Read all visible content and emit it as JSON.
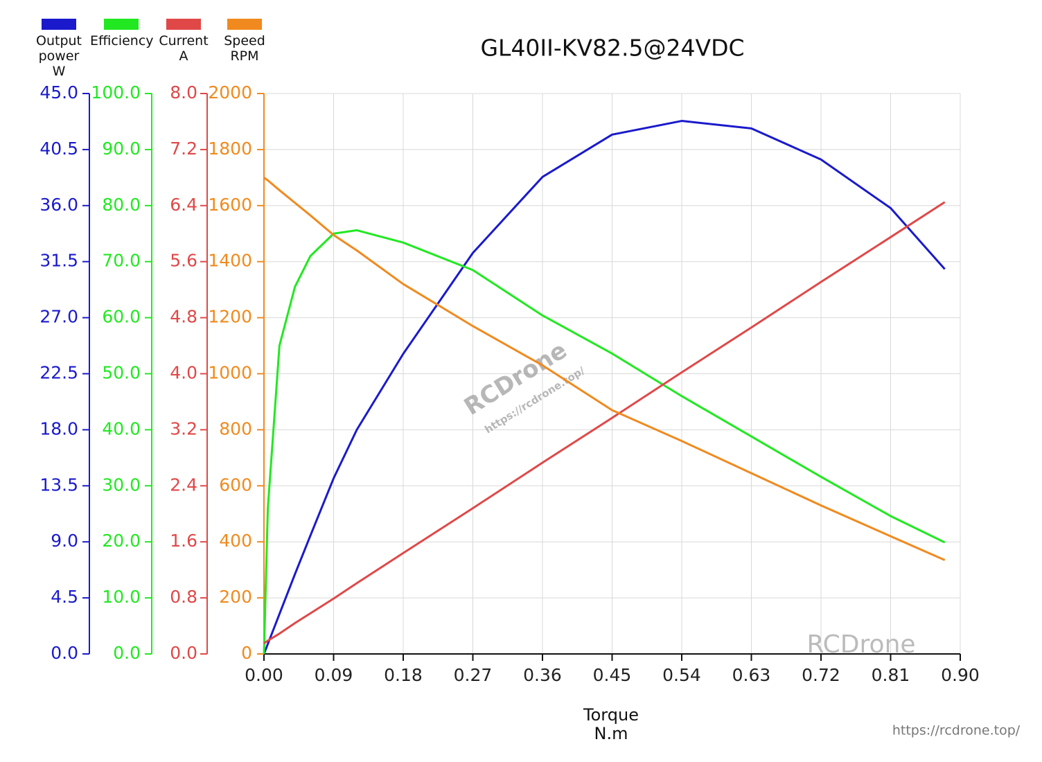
{
  "chart_data": {
    "type": "line",
    "title": "GL40II-KV82.5@24VDC",
    "x_label": "Torque\nN.m",
    "watermarks": [
      "RCDrone",
      "https://rcdrone.top/"
    ],
    "grid": true,
    "x": [
      0,
      0.005,
      0.02,
      0.04,
      0.06,
      0.09,
      0.12,
      0.18,
      0.27,
      0.36,
      0.45,
      0.54,
      0.63,
      0.72,
      0.81,
      0.88
    ],
    "xlim": [
      0,
      0.9
    ],
    "xticks": [
      {
        "value": 0,
        "label": "0.00"
      },
      {
        "value": 0.09,
        "label": "0.09"
      },
      {
        "value": 0.18,
        "label": "0.18"
      },
      {
        "value": 0.27,
        "label": "0.27"
      },
      {
        "value": 0.36,
        "label": "0.36"
      },
      {
        "value": 0.45,
        "label": "0.45"
      },
      {
        "value": 0.54,
        "label": "0.54"
      },
      {
        "value": 0.63,
        "label": "0.63"
      },
      {
        "value": 0.72,
        "label": "0.72"
      },
      {
        "value": 0.81,
        "label": "0.81"
      },
      {
        "value": 0.9,
        "label": "0.90"
      }
    ],
    "series": [
      {
        "name": "Output\npower\nW",
        "color": "#1a1acc",
        "values": [
          0,
          0.8,
          3.2,
          6.4,
          9.5,
          14.1,
          18,
          24.1,
          32.2,
          38.3,
          41.7,
          42.8,
          42.2,
          39.7,
          35.8,
          30.9
        ],
        "ylim": [
          0,
          45
        ],
        "yticks": [
          {
            "value": 0,
            "label": "0.0"
          },
          4.5,
          {
            "value": 9,
            "label": "9.0"
          },
          13.5,
          {
            "value": 18,
            "label": "18.0"
          },
          22.5,
          {
            "value": 27,
            "label": "27.0"
          },
          31.5,
          {
            "value": 36,
            "label": "36.0"
          },
          40.5,
          {
            "value": 45,
            "label": "45.0"
          }
        ]
      },
      {
        "name": "Efficiency",
        "color": "#22e822",
        "values": [
          0,
          26,
          55,
          65.5,
          71,
          75,
          75.6,
          73.4,
          68.5,
          60.4,
          53.6,
          46,
          38.8,
          31.6,
          24.6,
          19.9
        ],
        "ylim": [
          0,
          100
        ],
        "yticks": [
          {
            "value": 0,
            "label": "0.0"
          },
          {
            "value": 10,
            "label": "10.0"
          },
          {
            "value": 20,
            "label": "20.0"
          },
          {
            "value": 30,
            "label": "30.0"
          },
          {
            "value": 40,
            "label": "40.0"
          },
          {
            "value": 50,
            "label": "50.0"
          },
          {
            "value": 60,
            "label": "60.0"
          },
          {
            "value": 70,
            "label": "70.0"
          },
          {
            "value": 80,
            "label": "80.0"
          },
          {
            "value": 90,
            "label": "90.0"
          },
          {
            "value": 100,
            "label": "100.0"
          }
        ]
      },
      {
        "name": "Current\nA",
        "color": "#e04848",
        "values": [
          0.15,
          0.19,
          0.29,
          0.44,
          0.58,
          0.79,
          1.01,
          1.44,
          2.08,
          2.73,
          3.37,
          4.02,
          4.66,
          5.31,
          5.95,
          6.45
        ],
        "ylim": [
          0,
          8
        ],
        "yticks": [
          {
            "value": 0,
            "label": "0.0"
          },
          0.8,
          1.6,
          2.4,
          3.2,
          {
            "value": 4,
            "label": "4.0"
          },
          4.8,
          5.6,
          6.4,
          7.2,
          {
            "value": 8,
            "label": "8.0"
          }
        ]
      },
      {
        "name": "Speed\nRPM",
        "color": "#f08a1e",
        "values": [
          1700,
          1690,
          1655,
          1610,
          1565,
          1495,
          1440,
          1320,
          1170,
          1030,
          870,
          760,
          645,
          530,
          420,
          335
        ],
        "ylim": [
          0,
          2000
        ],
        "yticks": [
          0,
          200,
          400,
          600,
          800,
          1000,
          1200,
          1400,
          1600,
          1800,
          2000
        ]
      }
    ]
  }
}
